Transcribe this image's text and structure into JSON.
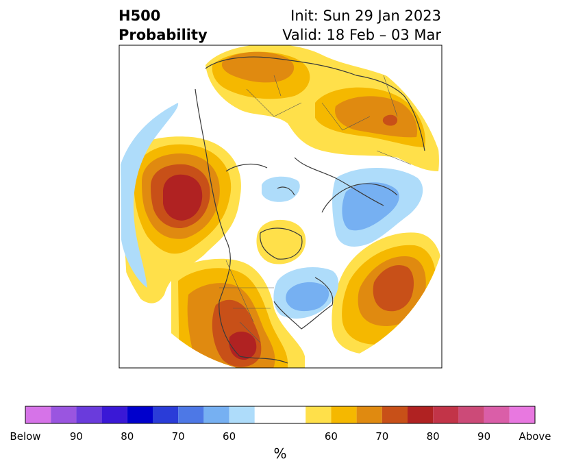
{
  "title": {
    "left_line1": "H500",
    "left_line2": "Probability",
    "init": "Init: Sun 29 Jan 2023",
    "valid": "Valid: 18 Feb – 03 Mar"
  },
  "colorbar": {
    "unit": "%",
    "below_colors": [
      "#d673e8",
      "#9a55e0",
      "#6a3bdc",
      "#3a18d6",
      "#0000cc",
      "#2a3cd8",
      "#4d78e6",
      "#76b0f2",
      "#aedcfa"
    ],
    "neutral_color": "#ffffff",
    "above_colors": [
      "#ffe04a",
      "#f5b800",
      "#e08a10",
      "#c85018",
      "#b02222",
      "#c23448",
      "#cc4a78",
      "#da5ea8",
      "#e878e0"
    ],
    "tick_labels": [
      "Below",
      "90",
      "80",
      "70",
      "60",
      "60",
      "70",
      "80",
      "90",
      "Above"
    ]
  },
  "map": {
    "map_type": "North polar stereographic 500 hPa height probability forecast",
    "legend_colors": {
      "above_60": "#ffe04a",
      "above_65": "#f5b800",
      "above_70": "#e08a10",
      "above_75": "#c85018",
      "above_80": "#b02222",
      "below_60": "#aedcfa",
      "below_65": "#76b0f2"
    }
  }
}
